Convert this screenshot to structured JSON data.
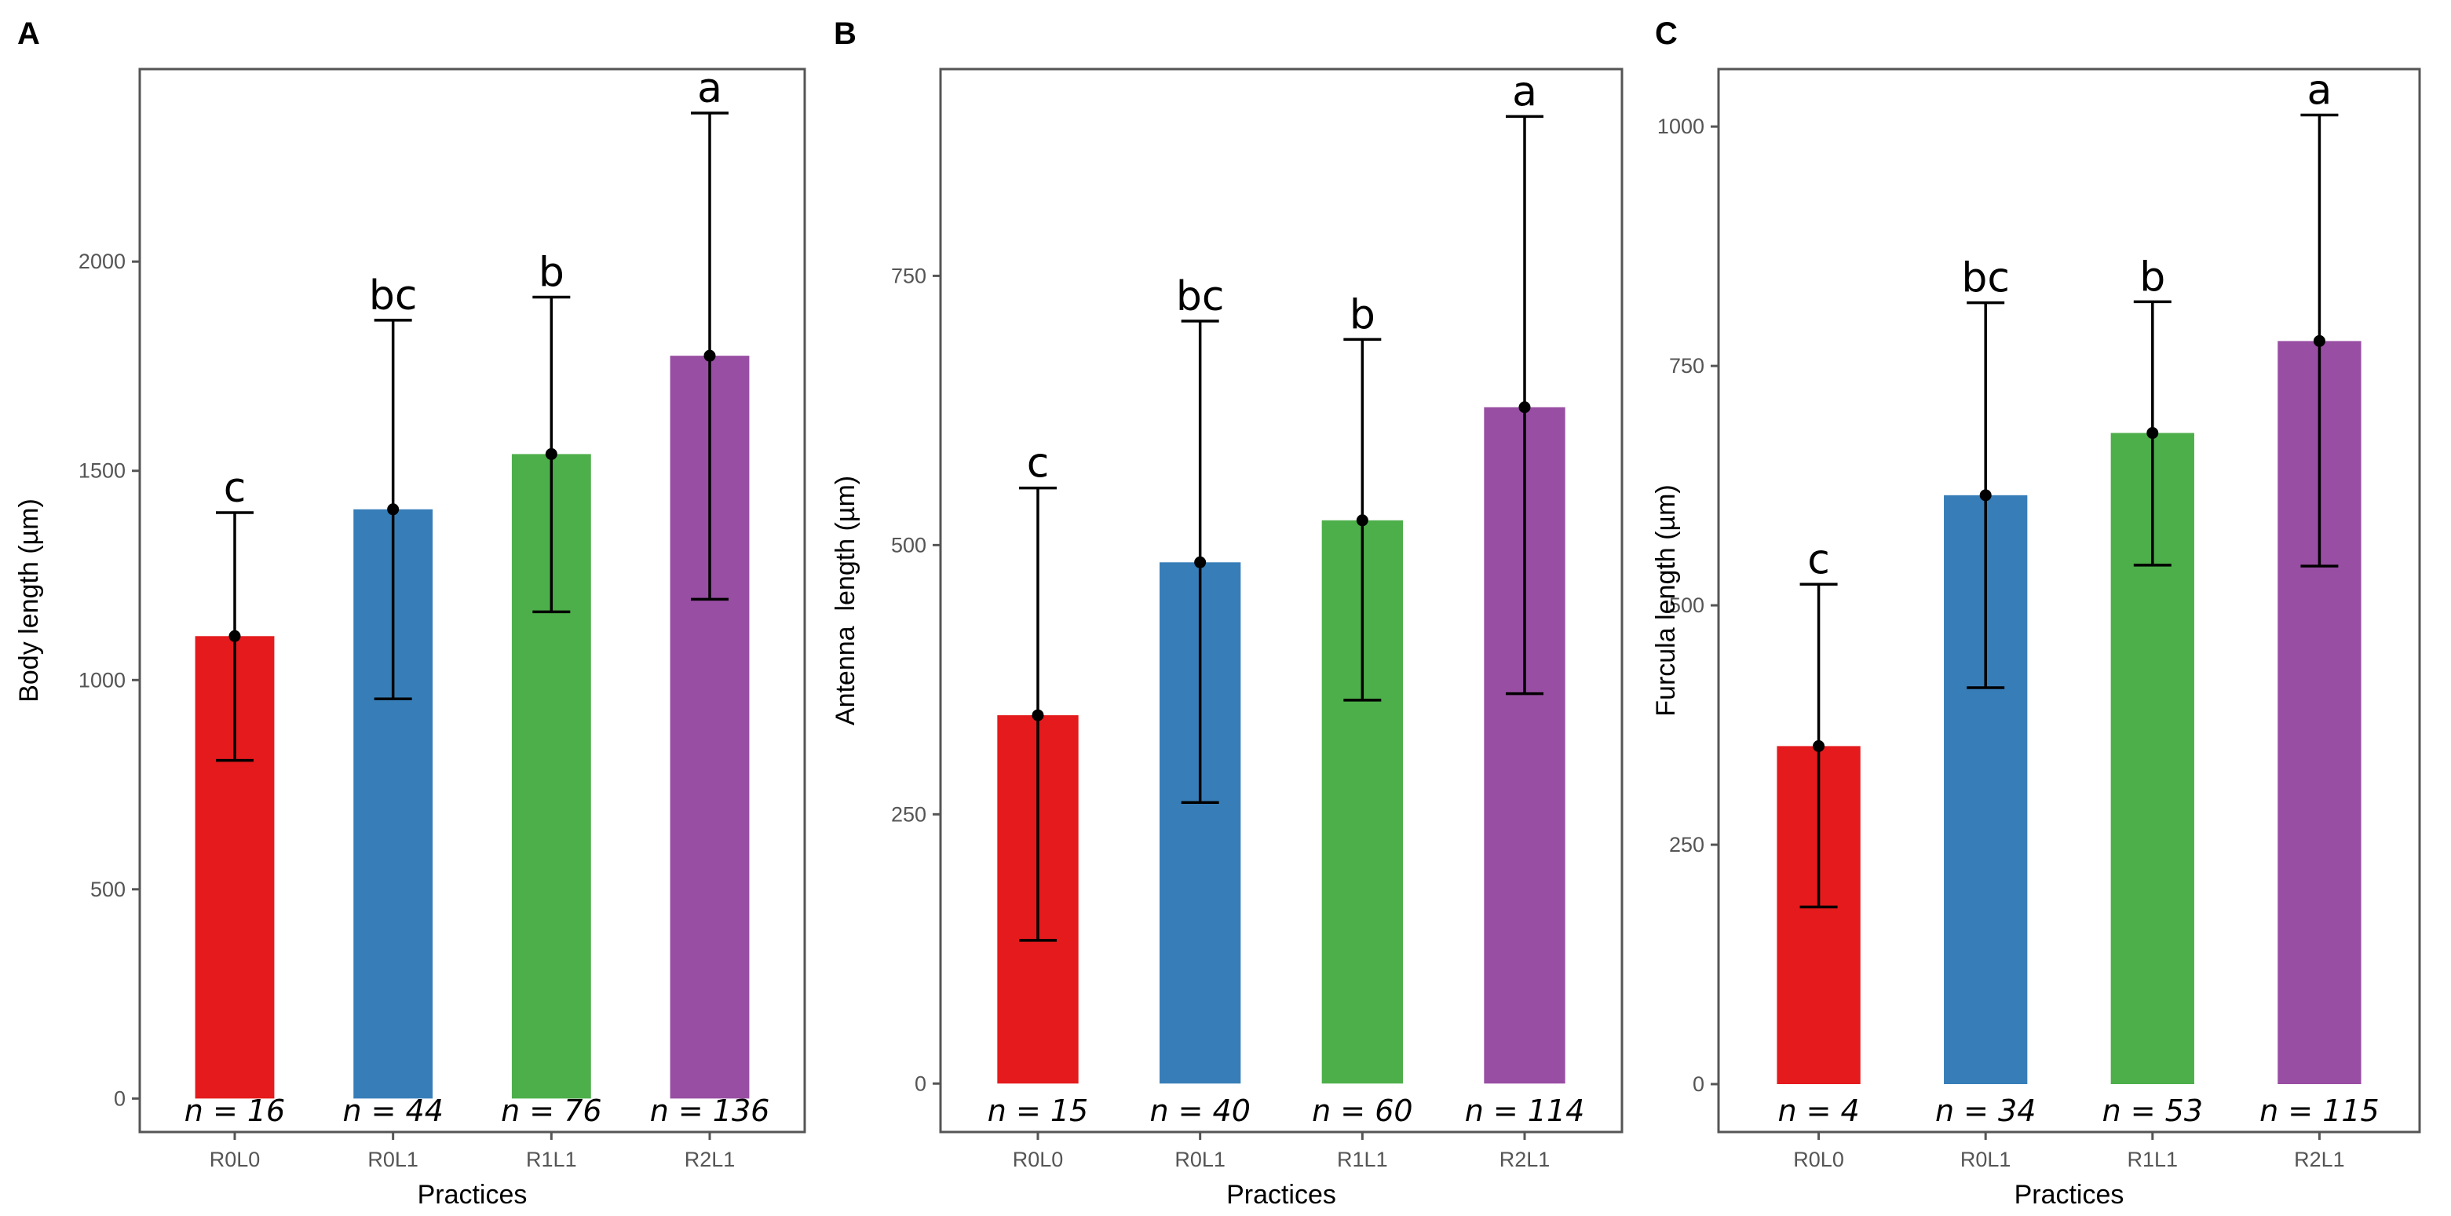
{
  "chart_data": [
    {
      "panel": "A",
      "type": "bar",
      "categories": [
        "R0L0",
        "R0L1",
        "R1L1",
        "R2L1"
      ],
      "values": [
        1105,
        1408,
        1540,
        1775
      ],
      "error_low": [
        808,
        955,
        1163,
        1193
      ],
      "error_high": [
        1400,
        1860,
        1915,
        2355
      ],
      "significance": [
        "c",
        "bc",
        "b",
        "a"
      ],
      "n_labels": [
        "n = 16",
        "n = 44",
        "n = 76",
        "n = 136"
      ],
      "colors": [
        "#e41a1c",
        "#377eb8",
        "#4daf4a",
        "#984ea3"
      ],
      "xlabel": "Practices",
      "ylabel": "Body length (µm)",
      "ylim": [
        -80,
        2460
      ],
      "yticks": [
        0,
        500,
        1000,
        1500,
        2000
      ],
      "ytick_labels": [
        "0",
        "500",
        "1000",
        "1500",
        "2000"
      ]
    },
    {
      "panel": "B",
      "type": "bar",
      "categories": [
        "R0L0",
        "R0L1",
        "R1L1",
        "R2L1"
      ],
      "values": [
        342,
        484,
        523,
        628
      ],
      "error_low": [
        133,
        261,
        356,
        362
      ],
      "error_high": [
        553,
        708,
        691,
        898
      ],
      "significance": [
        "c",
        "bc",
        "b",
        "a"
      ],
      "n_labels": [
        "n = 15",
        "n = 40",
        "n = 60",
        "n = 114"
      ],
      "colors": [
        "#e41a1c",
        "#377eb8",
        "#4daf4a",
        "#984ea3"
      ],
      "xlabel": "Practices",
      "ylabel": "Antenna  length (µm)",
      "ylim": [
        -45,
        942
      ],
      "yticks": [
        0,
        250,
        500,
        750
      ],
      "ytick_labels": [
        "0",
        "250",
        "500",
        "750"
      ]
    },
    {
      "panel": "C",
      "type": "bar",
      "categories": [
        "R0L0",
        "R0L1",
        "R1L1",
        "R2L1"
      ],
      "values": [
        353,
        615,
        680,
        776
      ],
      "error_low": [
        185,
        414,
        542,
        541
      ],
      "error_high": [
        522,
        816,
        817,
        1012
      ],
      "significance": [
        "c",
        "bc",
        "b",
        "a"
      ],
      "n_labels": [
        "n = 4",
        "n = 34",
        "n = 53",
        "n = 115"
      ],
      "colors": [
        "#e41a1c",
        "#377eb8",
        "#4daf4a",
        "#984ea3"
      ],
      "xlabel": "Practices",
      "ylabel": "Furcula length (µm)",
      "ylim": [
        -50,
        1060
      ],
      "yticks": [
        0,
        250,
        500,
        750,
        1000
      ],
      "ytick_labels": [
        "0",
        "250",
        "500",
        "750",
        "1000"
      ]
    }
  ]
}
